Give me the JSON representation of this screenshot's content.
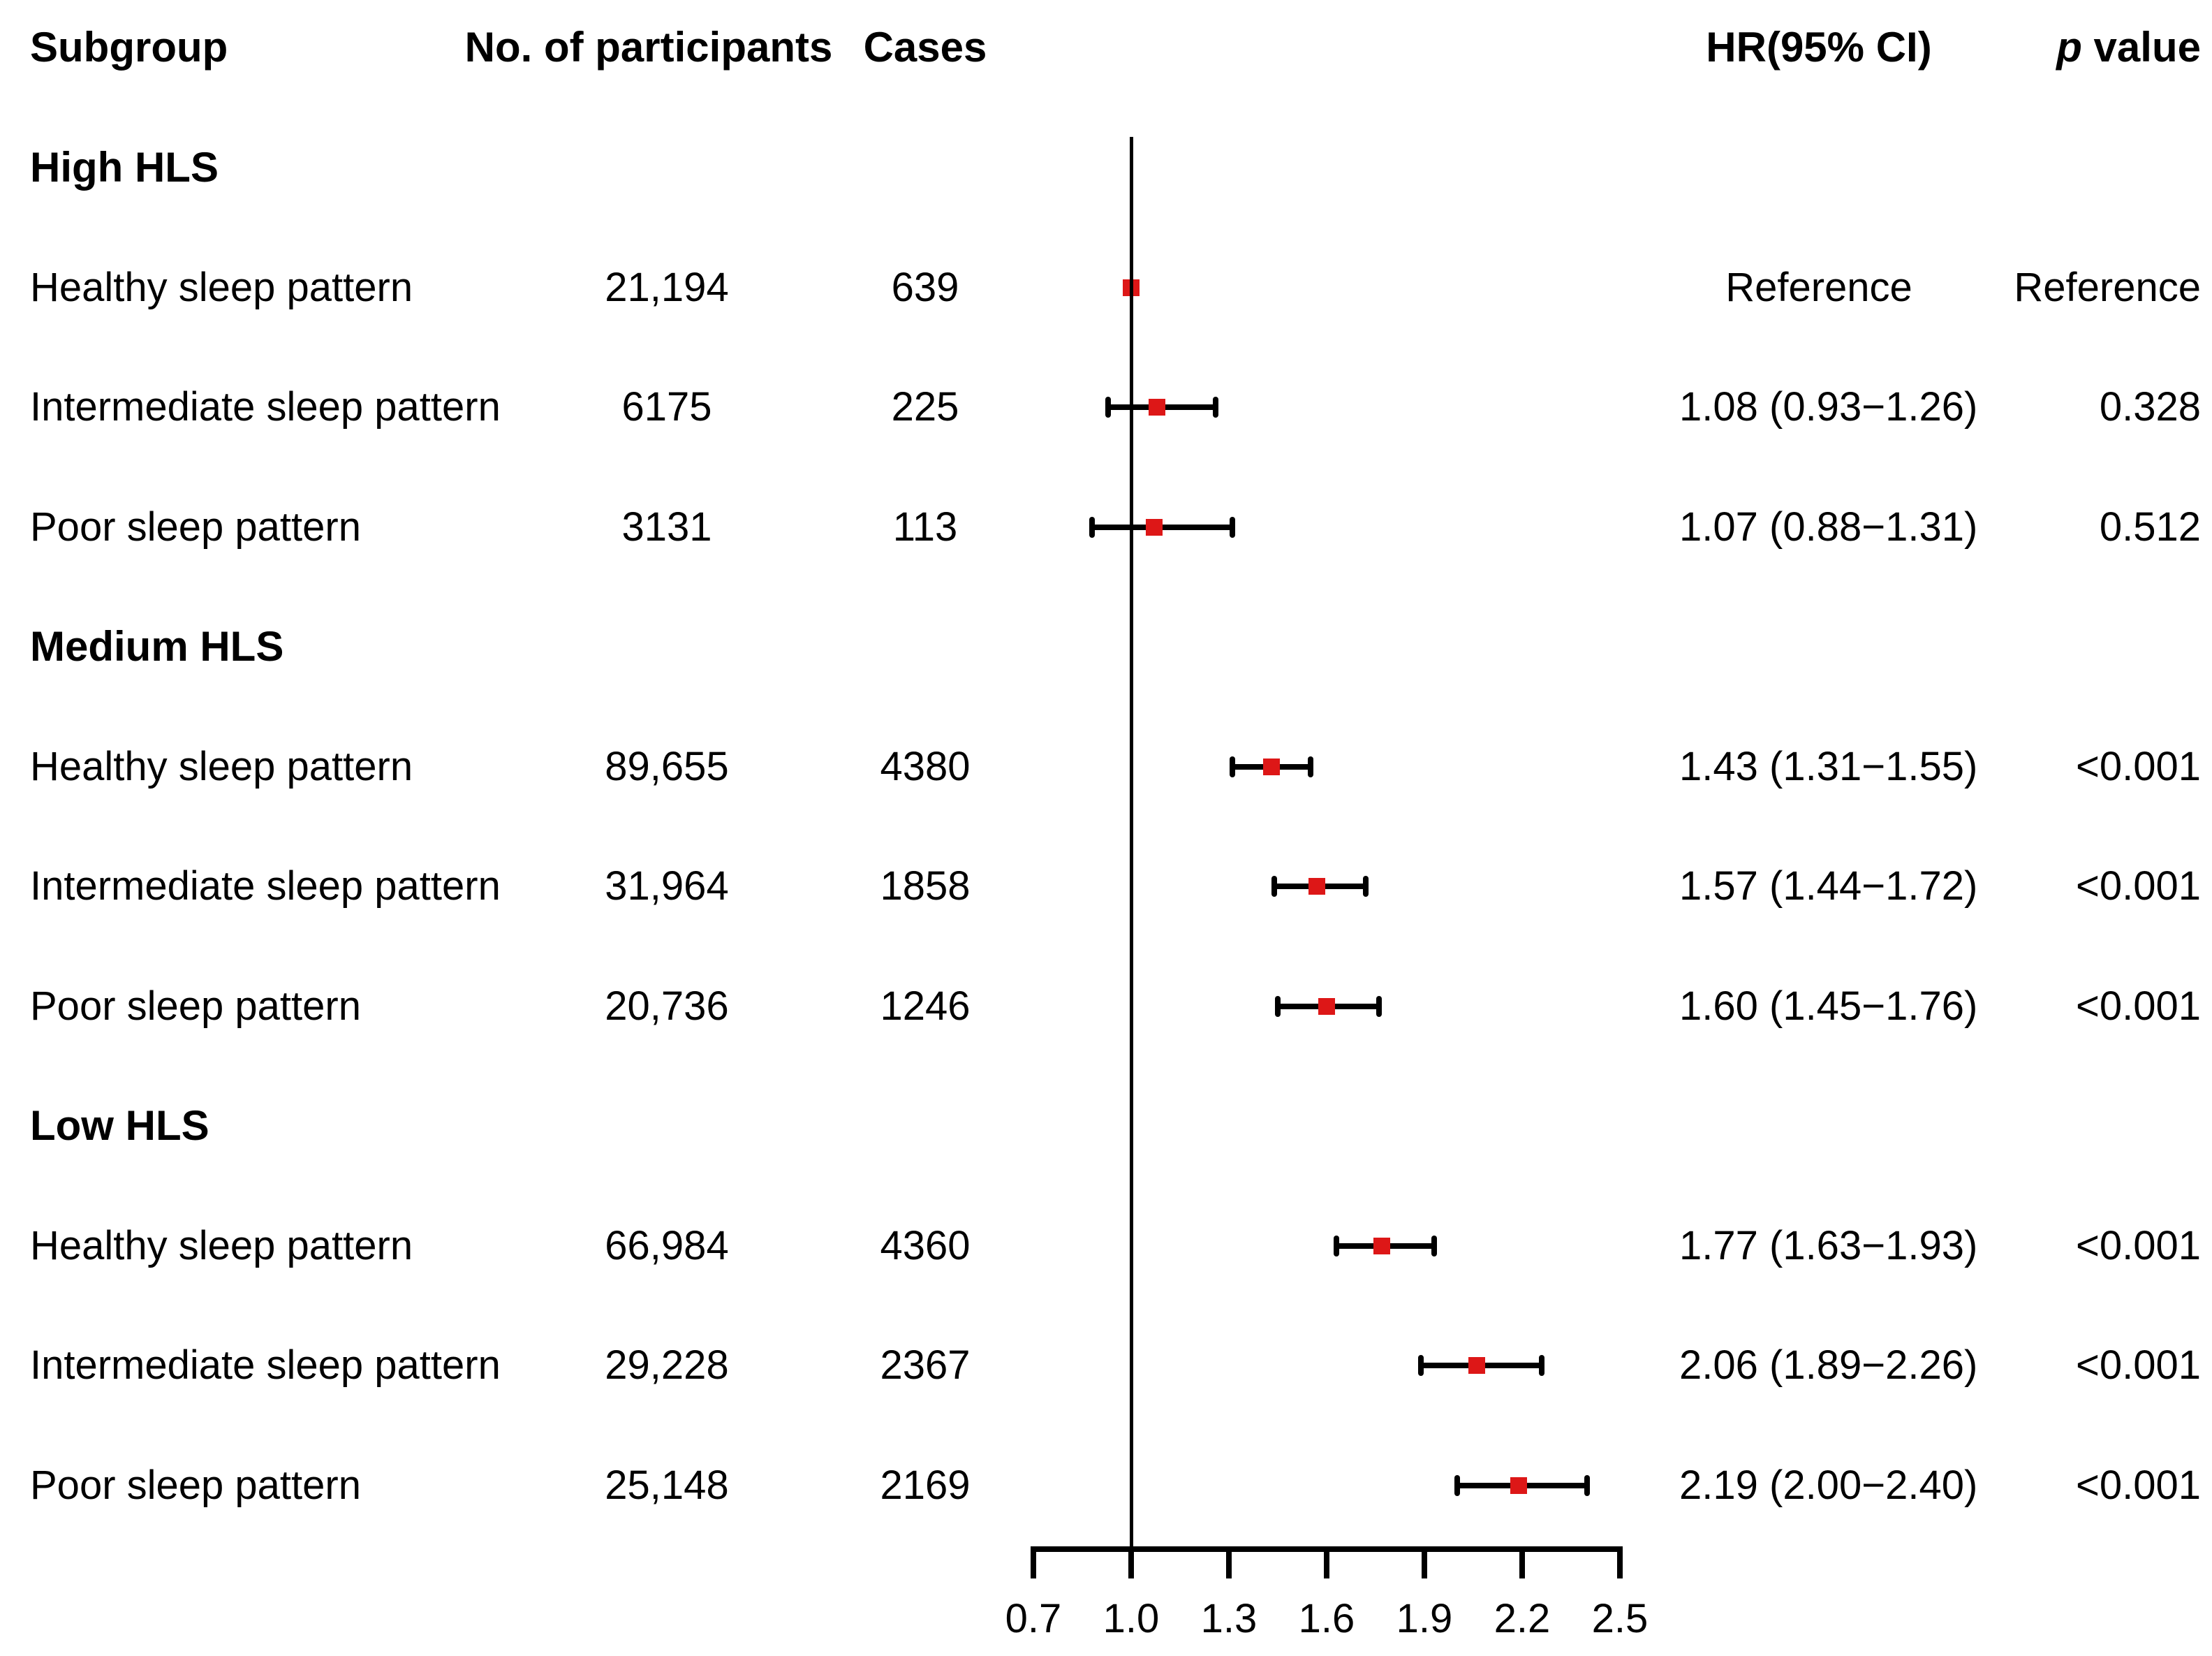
{
  "columns": {
    "subgroup": "Subgroup",
    "participants": "No. of participants",
    "cases": "Cases",
    "hr": "HR(95% CI)",
    "p_italic": "p",
    "p_rest": " value"
  },
  "colors": {
    "marker_red": "#dd1717",
    "line_black": "#000000",
    "background": "#ffffff"
  },
  "chart_data": {
    "type": "scatter",
    "subtype": "forest-plot",
    "title": "",
    "xlabel": "",
    "ylabel": "",
    "xlim": [
      0.7,
      2.5
    ],
    "x_ticks": [
      0.7,
      1.0,
      1.3,
      1.6,
      1.9,
      2.2,
      2.5
    ],
    "x_tick_labels": [
      "0.7",
      "1.0",
      "1.3",
      "1.6",
      "1.9",
      "2.2",
      "2.5"
    ],
    "reference_line_x": 1.0,
    "grid": false,
    "legend": false,
    "groups": [
      {
        "name": "High HLS",
        "rows": [
          {
            "label": "Healthy sleep pattern",
            "participants": "21,194",
            "cases": "639",
            "hr": 1.0,
            "ci_low": null,
            "ci_high": null,
            "hr_ci_text": "Reference",
            "p_text": "Reference",
            "is_reference": true
          },
          {
            "label": "Intermediate sleep pattern",
            "participants": "6175",
            "cases": "225",
            "hr": 1.08,
            "ci_low": 0.93,
            "ci_high": 1.26,
            "hr_ci_text": "1.08 (0.93−1.26)",
            "p_text": "0.328",
            "is_reference": false
          },
          {
            "label": "Poor sleep pattern",
            "participants": "3131",
            "cases": "113",
            "hr": 1.07,
            "ci_low": 0.88,
            "ci_high": 1.31,
            "hr_ci_text": "1.07 (0.88−1.31)",
            "p_text": "0.512",
            "is_reference": false
          }
        ]
      },
      {
        "name": "Medium HLS",
        "rows": [
          {
            "label": "Healthy sleep pattern",
            "participants": "89,655",
            "cases": "4380",
            "hr": 1.43,
            "ci_low": 1.31,
            "ci_high": 1.55,
            "hr_ci_text": "1.43 (1.31−1.55)",
            "p_text": "<0.001",
            "is_reference": false
          },
          {
            "label": "Intermediate sleep pattern",
            "participants": "31,964",
            "cases": "1858",
            "hr": 1.57,
            "ci_low": 1.44,
            "ci_high": 1.72,
            "hr_ci_text": "1.57 (1.44−1.72)",
            "p_text": "<0.001",
            "is_reference": false
          },
          {
            "label": "Poor sleep pattern",
            "participants": "20,736",
            "cases": "1246",
            "hr": 1.6,
            "ci_low": 1.45,
            "ci_high": 1.76,
            "hr_ci_text": "1.60 (1.45−1.76)",
            "p_text": "<0.001",
            "is_reference": false
          }
        ]
      },
      {
        "name": "Low HLS",
        "rows": [
          {
            "label": "Healthy sleep pattern",
            "participants": "66,984",
            "cases": "4360",
            "hr": 1.77,
            "ci_low": 1.63,
            "ci_high": 1.93,
            "hr_ci_text": "1.77 (1.63−1.93)",
            "p_text": "<0.001",
            "is_reference": false
          },
          {
            "label": "Intermediate sleep pattern",
            "participants": "29,228",
            "cases": "2367",
            "hr": 2.06,
            "ci_low": 1.89,
            "ci_high": 2.26,
            "hr_ci_text": "2.06 (1.89−2.26)",
            "p_text": "<0.001",
            "is_reference": false
          },
          {
            "label": "Poor sleep pattern",
            "participants": "25,148",
            "cases": "2169",
            "hr": 2.19,
            "ci_low": 2.0,
            "ci_high": 2.4,
            "hr_ci_text": "2.19 (2.00−2.40)",
            "p_text": "<0.001",
            "is_reference": false
          }
        ]
      }
    ]
  }
}
